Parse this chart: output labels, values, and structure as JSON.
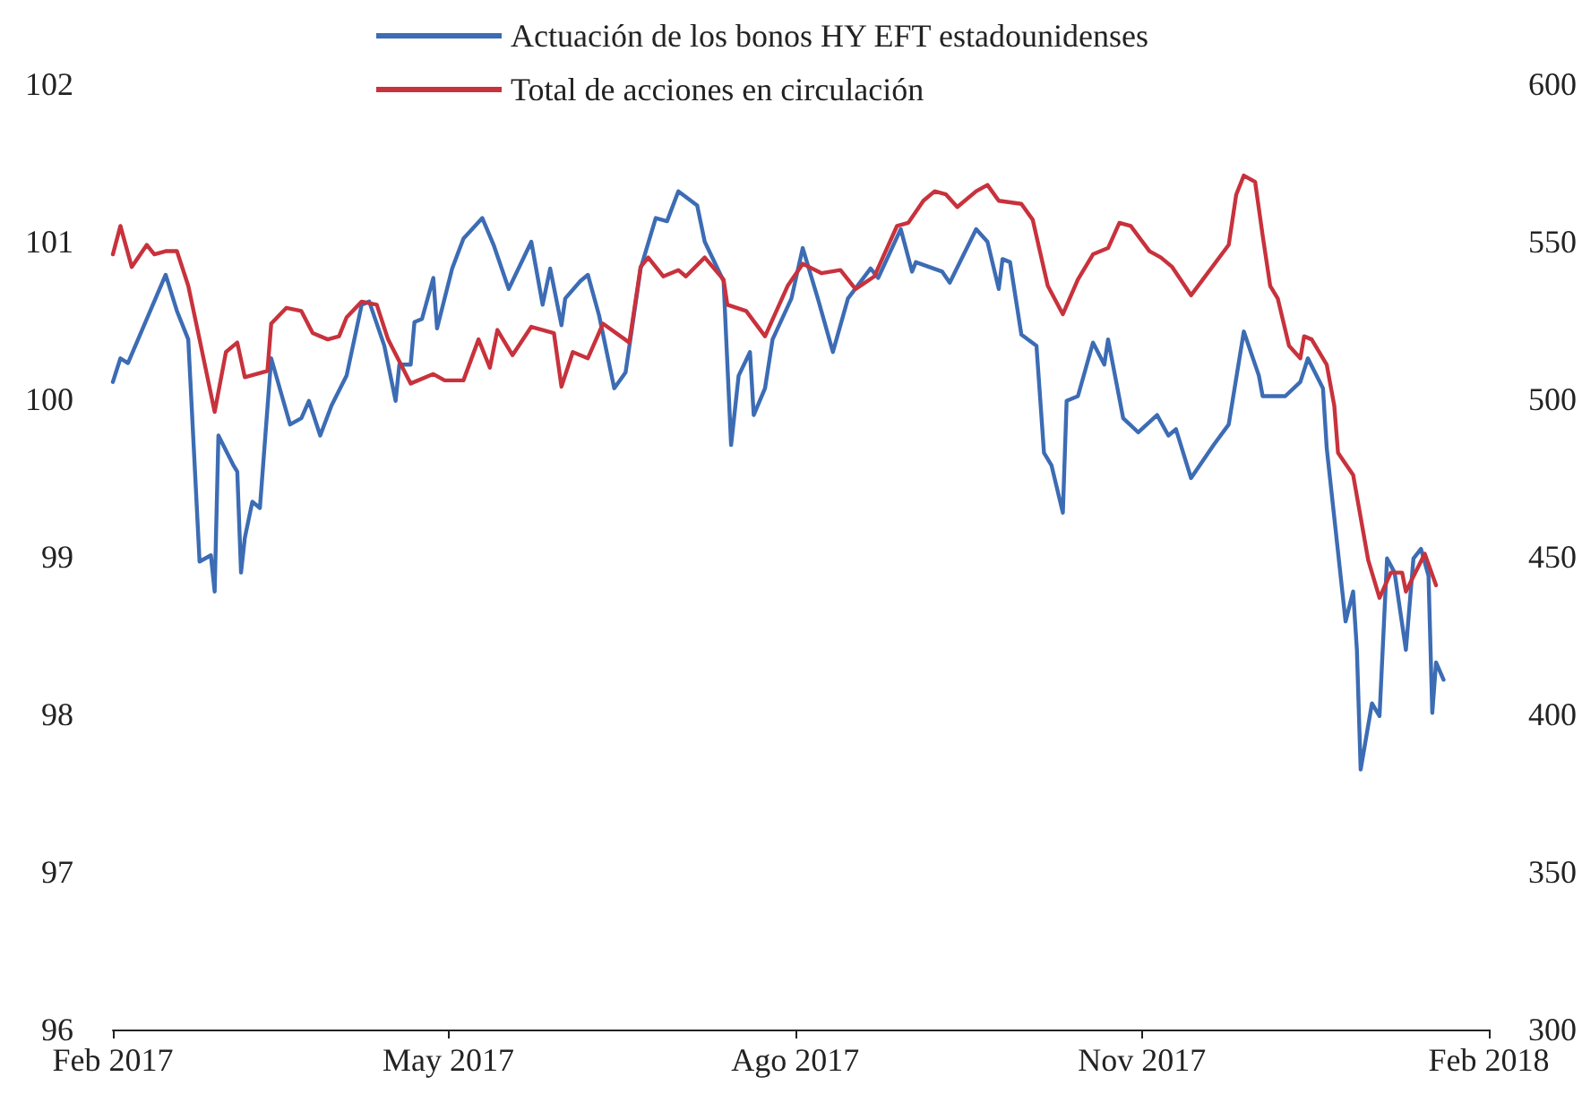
{
  "chart_data": {
    "type": "line",
    "xlim": [
      "2017-02-01",
      "2018-02-01"
    ],
    "xticks": [
      {
        "value": "2017-02-01",
        "label": "Feb 2017"
      },
      {
        "value": "2017-05-01",
        "label": "May 2017"
      },
      {
        "value": "2017-08-01",
        "label": "Ago 2017"
      },
      {
        "value": "2017-11-01",
        "label": "Nov 2017"
      },
      {
        "value": "2018-02-01",
        "label": "Feb 2018"
      }
    ],
    "ylim": [
      96,
      102
    ],
    "yticks": [
      96,
      97,
      98,
      99,
      100,
      101,
      102
    ],
    "y2lim": [
      300,
      600
    ],
    "y2ticks": [
      300,
      350,
      400,
      450,
      500,
      550,
      600
    ],
    "grid": false,
    "legend": "top",
    "marker": "none",
    "line_style": "solid",
    "series": [
      {
        "name": "Actuación de los bonos HY EFT estadounidenses",
        "color": "#3c6cb4",
        "x": [
          "2017-02-01",
          "2017-02-03",
          "2017-02-05",
          "2017-02-15",
          "2017-02-18",
          "2017-02-21",
          "2017-02-24",
          "2017-02-27",
          "2017-02-28",
          "2017-03-01",
          "2017-03-05",
          "2017-03-06",
          "2017-03-07",
          "2017-03-08",
          "2017-03-10",
          "2017-03-12",
          "2017-03-15",
          "2017-03-20",
          "2017-03-23",
          "2017-03-25",
          "2017-03-28",
          "2017-03-31",
          "2017-04-04",
          "2017-04-08",
          "2017-04-10",
          "2017-04-14",
          "2017-04-17",
          "2017-04-18",
          "2017-04-21",
          "2017-04-22",
          "2017-04-24",
          "2017-04-27",
          "2017-04-28",
          "2017-05-02",
          "2017-05-05",
          "2017-05-10",
          "2017-05-13",
          "2017-05-17",
          "2017-05-23",
          "2017-05-26",
          "2017-05-28",
          "2017-05-31",
          "2017-06-01",
          "2017-06-05",
          "2017-06-07",
          "2017-06-10",
          "2017-06-14",
          "2017-06-17",
          "2017-06-21",
          "2017-06-25",
          "2017-06-28",
          "2017-07-01",
          "2017-07-06",
          "2017-07-08",
          "2017-07-13",
          "2017-07-15",
          "2017-07-17",
          "2017-07-20",
          "2017-07-21",
          "2017-07-24",
          "2017-07-26",
          "2017-07-31",
          "2017-08-03",
          "2017-08-07",
          "2017-08-11",
          "2017-08-15",
          "2017-08-21",
          "2017-08-23",
          "2017-08-29",
          "2017-09-01",
          "2017-09-02",
          "2017-09-09",
          "2017-09-11",
          "2017-09-18",
          "2017-09-21",
          "2017-09-24",
          "2017-09-25",
          "2017-09-27",
          "2017-09-30",
          "2017-10-04",
          "2017-10-06",
          "2017-10-08",
          "2017-10-11",
          "2017-10-12",
          "2017-10-15",
          "2017-10-19",
          "2017-10-22",
          "2017-10-23",
          "2017-10-27",
          "2017-10-31",
          "2017-11-05",
          "2017-11-08",
          "2017-11-10",
          "2017-11-14",
          "2017-11-20",
          "2017-11-24",
          "2017-11-28",
          "2017-12-02",
          "2017-12-03",
          "2017-12-09",
          "2017-12-13",
          "2017-12-15",
          "2017-12-19",
          "2017-12-20",
          "2017-12-25",
          "2017-12-27",
          "2017-12-28",
          "2017-12-29",
          "2018-01-01",
          "2018-01-03",
          "2018-01-05",
          "2018-01-07",
          "2018-01-10",
          "2018-01-12",
          "2018-01-14",
          "2018-01-16",
          "2018-01-17",
          "2018-01-18",
          "2018-01-20"
        ],
        "values": [
          100.11,
          100.26,
          100.23,
          100.79,
          100.56,
          100.38,
          98.97,
          99.01,
          98.78,
          99.77,
          99.58,
          99.54,
          98.9,
          99.12,
          99.35,
          99.31,
          100.26,
          99.84,
          99.88,
          99.99,
          99.77,
          99.96,
          100.15,
          100.6,
          100.62,
          100.34,
          99.99,
          100.22,
          100.22,
          100.49,
          100.51,
          100.77,
          100.45,
          100.83,
          101.02,
          101.15,
          100.98,
          100.7,
          101.0,
          100.6,
          100.83,
          100.47,
          100.64,
          100.75,
          100.79,
          100.53,
          100.07,
          100.17,
          100.83,
          101.15,
          101.13,
          101.32,
          101.23,
          101.0,
          100.75,
          99.71,
          100.15,
          100.3,
          99.9,
          100.07,
          100.38,
          100.64,
          100.96,
          100.64,
          100.3,
          100.64,
          100.83,
          100.77,
          101.08,
          100.81,
          100.87,
          100.81,
          100.74,
          101.08,
          101.0,
          100.7,
          100.89,
          100.87,
          100.41,
          100.34,
          99.66,
          99.58,
          99.28,
          99.99,
          100.02,
          100.36,
          100.22,
          100.38,
          99.88,
          99.79,
          99.9,
          99.77,
          99.81,
          99.5,
          99.71,
          99.84,
          100.43,
          100.15,
          100.02,
          100.02,
          100.11,
          100.26,
          100.07,
          99.69,
          98.59,
          98.78,
          98.41,
          97.65,
          98.07,
          97.99,
          98.99,
          98.9,
          98.41,
          98.99,
          99.05,
          98.88,
          98.01,
          98.33,
          98.22
        ]
      },
      {
        "name": "Total de acciones en circulación",
        "color": "#c8323c",
        "axis": "y2",
        "x": [
          "2017-02-01",
          "2017-02-03",
          "2017-02-06",
          "2017-02-10",
          "2017-02-12",
          "2017-02-15",
          "2017-02-18",
          "2017-02-21",
          "2017-02-24",
          "2017-02-28",
          "2017-03-03",
          "2017-03-06",
          "2017-03-08",
          "2017-03-14",
          "2017-03-15",
          "2017-03-19",
          "2017-03-23",
          "2017-03-26",
          "2017-03-30",
          "2017-04-02",
          "2017-04-04",
          "2017-04-08",
          "2017-04-12",
          "2017-04-15",
          "2017-04-21",
          "2017-04-27",
          "2017-04-30",
          "2017-05-05",
          "2017-05-09",
          "2017-05-12",
          "2017-05-14",
          "2017-05-18",
          "2017-05-23",
          "2017-05-29",
          "2017-05-31",
          "2017-06-03",
          "2017-06-07",
          "2017-06-11",
          "2017-06-18",
          "2017-06-21",
          "2017-06-23",
          "2017-06-27",
          "2017-07-01",
          "2017-07-03",
          "2017-07-08",
          "2017-07-13",
          "2017-07-14",
          "2017-07-19",
          "2017-07-24",
          "2017-07-30",
          "2017-08-03",
          "2017-08-08",
          "2017-08-13",
          "2017-08-17",
          "2017-08-22",
          "2017-08-28",
          "2017-08-31",
          "2017-09-04",
          "2017-09-07",
          "2017-09-10",
          "2017-09-13",
          "2017-09-18",
          "2017-09-21",
          "2017-09-24",
          "2017-09-30",
          "2017-10-03",
          "2017-10-07",
          "2017-10-11",
          "2017-10-15",
          "2017-10-19",
          "2017-10-23",
          "2017-10-26",
          "2017-10-29",
          "2017-11-03",
          "2017-11-06",
          "2017-11-09",
          "2017-11-14",
          "2017-11-24",
          "2017-11-26",
          "2017-11-28",
          "2017-12-01",
          "2017-12-03",
          "2017-12-05",
          "2017-12-07",
          "2017-12-10",
          "2017-12-13",
          "2017-12-14",
          "2017-12-16",
          "2017-12-20",
          "2017-12-22",
          "2017-12-23",
          "2017-12-27",
          "2017-12-31",
          "2018-01-03",
          "2018-01-06",
          "2018-01-09",
          "2018-01-10",
          "2018-01-15",
          "2018-01-18"
        ],
        "values": [
          546,
          555,
          542,
          549,
          546,
          547,
          547,
          536,
          519,
          496,
          515,
          518,
          507,
          509,
          524,
          529,
          528,
          521,
          519,
          520,
          526,
          531,
          530,
          519,
          505,
          508,
          506,
          506,
          519,
          510,
          522,
          514,
          523,
          521,
          504,
          515,
          513,
          524,
          518,
          542,
          545,
          539,
          541,
          539,
          545,
          538,
          530,
          528,
          520,
          536,
          543,
          540,
          541,
          535,
          539,
          555,
          556,
          563,
          566,
          565,
          561,
          566,
          568,
          563,
          562,
          557,
          536,
          527,
          538,
          546,
          548,
          556,
          555,
          547,
          545,
          542,
          533,
          549,
          565,
          571,
          569,
          552,
          536,
          532,
          517,
          513,
          520,
          519,
          511,
          498,
          483,
          476,
          449,
          437,
          445,
          445,
          439,
          451,
          441
        ]
      }
    ]
  }
}
